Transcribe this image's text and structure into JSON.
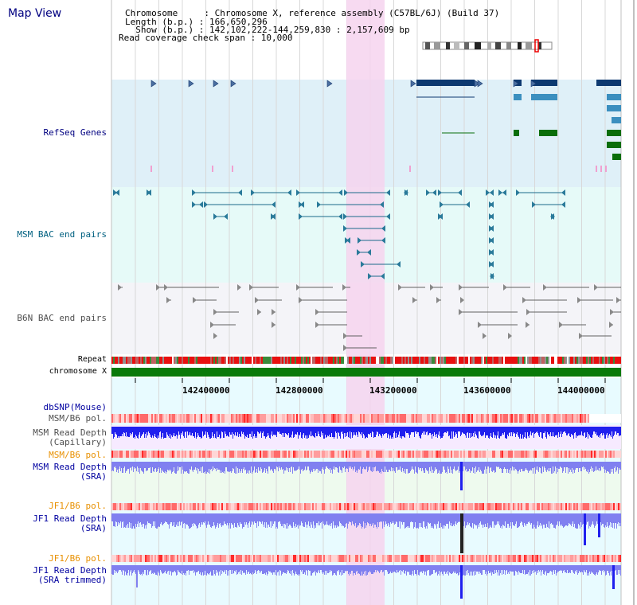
{
  "header": {
    "title": "Map View"
  },
  "info": {
    "chromosome": "Chromosome     : Chromosome X, reference assembly (C57BL/6J) (Build 37)",
    "length": "Length (b.p.) : 166,650,296",
    "show": "  Show (b.p.) : 142,102,222-144,259,830 : 2,157,609 bp",
    "span": "Read coverage check span : 10,000"
  },
  "tracks": {
    "refseq": "RefSeq Genes",
    "msm_bac": "MSM BAC end pairs",
    "b6n_bac": "B6N BAC end pairs",
    "repeat": "Repeat",
    "chromosome": "chromosome X",
    "dbsnp": "dbSNP(Mouse)",
    "msm_b6_pol_1": "MSM/B6 pol.",
    "msm_depth_cap_1": "MSM Read Depth",
    "msm_depth_cap_2": "(Capillary)",
    "msm_b6_pol_2": "MSM/B6 pol.",
    "msm_depth_sra_1": "MSM Read Depth",
    "msm_depth_sra_2": "(SRA)",
    "jf1_b6_pol_1": "JF1/B6 pol.",
    "jf1_depth_sra_1": "JF1 Read Depth",
    "jf1_depth_sra_2": "(SRA)",
    "jf1_b6_pol_2": "JF1/B6 pol.",
    "jf1_depth_trim_1": "JF1 Read Depth",
    "jf1_depth_trim_2": "(SRA trimmed)"
  },
  "axis": {
    "ticks": [
      "142400000",
      "142800000",
      "143200000",
      "143600000",
      "144000000"
    ]
  },
  "colors": {
    "title": "#000080",
    "refseq_bg": "#dff0f8",
    "bac_msm_bg": "#e6faf8",
    "bac_b6n_bg": "#f4f4f8",
    "highlight": "#f6d3ef",
    "gene_navy": "#0d3970",
    "gene_blue": "#3b8fbf",
    "gene_green": "#0a6e0a",
    "chromosome_bar": "#0a7a0a",
    "depth_blue": "#1a1aff",
    "depth_light": "#8080f0",
    "pol_red": "#ff2a2a",
    "label_orange": "#e89000",
    "label_blue": "#0000a0"
  }
}
